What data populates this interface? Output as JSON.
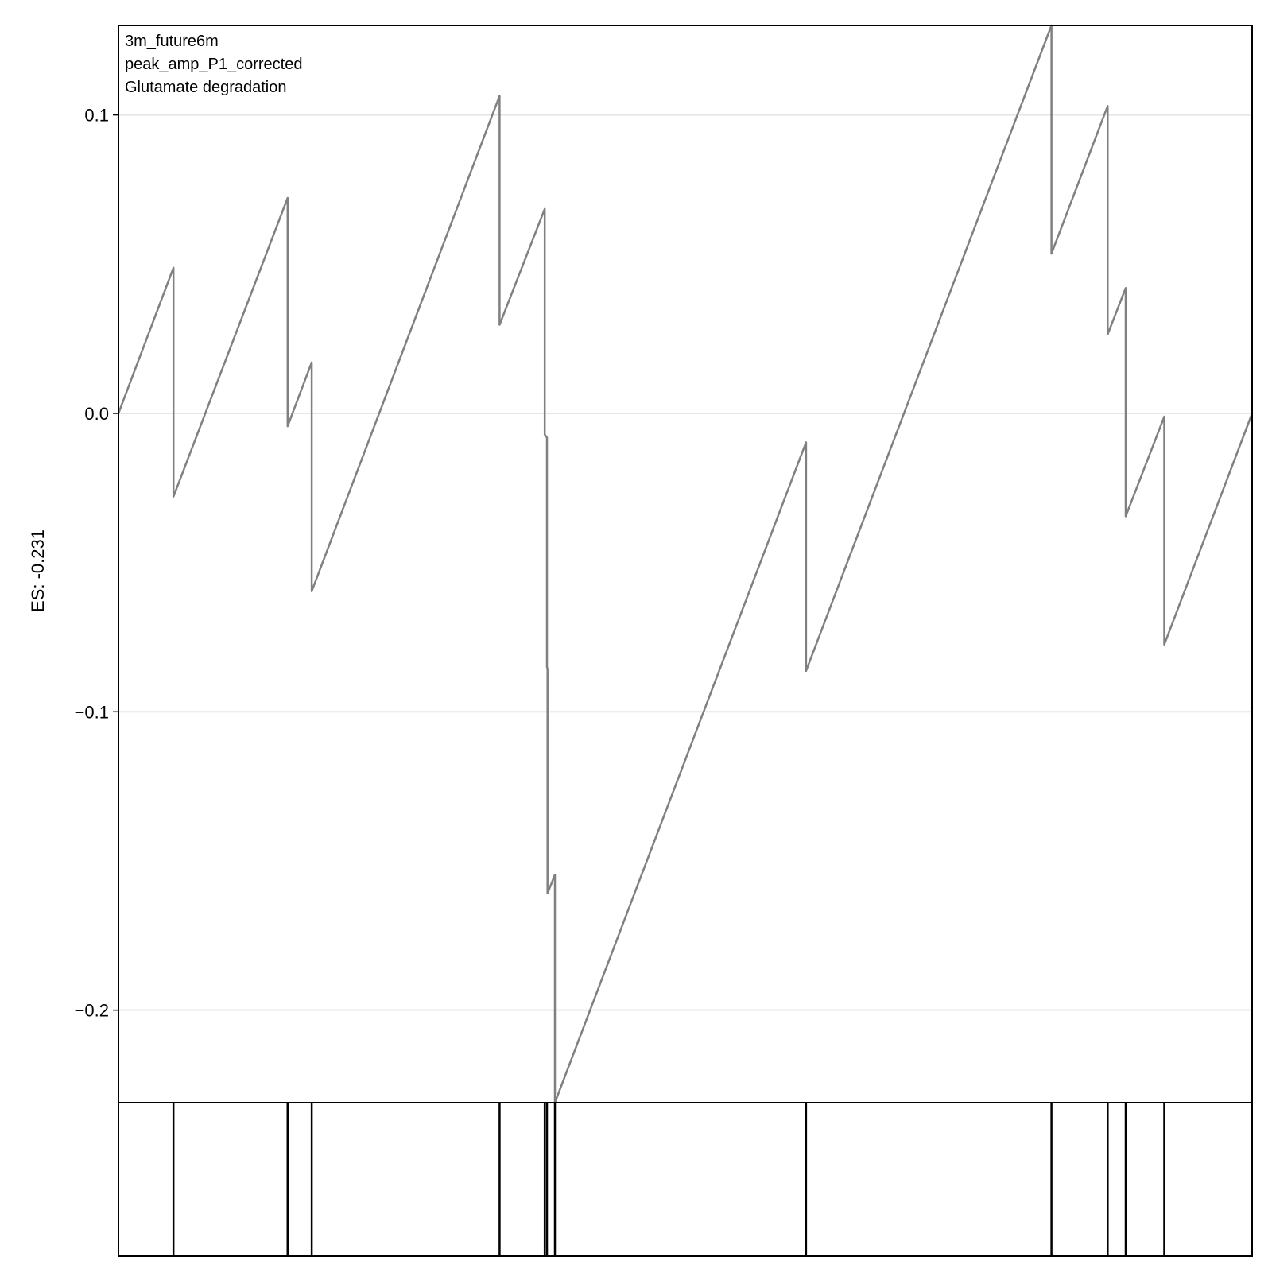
{
  "chart_data": {
    "type": "line",
    "annotations": [
      "3m_future6m",
      "peak_amp_P1_corrected",
      "Glutamate degradation"
    ],
    "ylabel": "ES: -0.231",
    "xlabel": "",
    "ylim": [
      -0.231,
      0.13
    ],
    "xlim": [
      0,
      1
    ],
    "grid": true,
    "y_ticks": [
      {
        "value": 0.1,
        "label": "0.1"
      },
      {
        "value": 0.0,
        "label": "0.0"
      },
      {
        "value": -0.1,
        "label": "−0.1"
      },
      {
        "value": -0.2,
        "label": "−0.2"
      }
    ],
    "series": [
      {
        "color": "#808080",
        "points": [
          [
            0.0,
            0.0
          ],
          [
            0.0485,
            0.0488
          ],
          [
            0.0485,
            -0.0279
          ],
          [
            0.1492,
            0.0722
          ],
          [
            0.1492,
            -0.0043
          ],
          [
            0.1705,
            0.0171
          ],
          [
            0.1705,
            -0.0596
          ],
          [
            0.3362,
            0.1064
          ],
          [
            0.3362,
            0.0297
          ],
          [
            0.376,
            0.0685
          ],
          [
            0.376,
            -0.0071
          ],
          [
            0.378,
            -0.0081
          ],
          [
            0.378,
            -0.085
          ],
          [
            0.3785,
            -0.0856
          ],
          [
            0.3785,
            -0.1609
          ],
          [
            0.385,
            -0.1546
          ],
          [
            0.385,
            -0.231
          ],
          [
            0.6065,
            -0.0097
          ],
          [
            0.6065,
            -0.0863
          ],
          [
            0.823,
            0.13
          ],
          [
            0.823,
            0.0535
          ],
          [
            0.8726,
            0.103
          ],
          [
            0.8726,
            0.0265
          ],
          [
            0.8885,
            0.042
          ],
          [
            0.8885,
            -0.0345
          ],
          [
            0.9225,
            -0.0011
          ],
          [
            0.9225,
            -0.0775
          ],
          [
            1.0,
            0.0
          ]
        ]
      }
    ],
    "hits": [
      0.0485,
      0.1492,
      0.1705,
      0.3362,
      0.376,
      0.378,
      0.385,
      0.6065,
      0.823,
      0.8726,
      0.8885,
      0.9225
    ]
  }
}
